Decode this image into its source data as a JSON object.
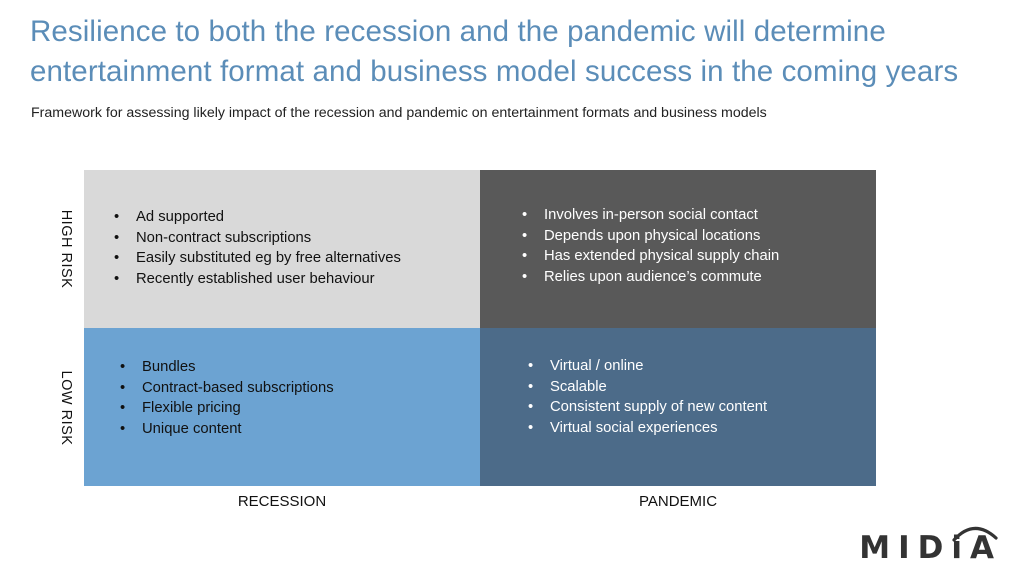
{
  "title": "Resilience to both the recession and the pandemic will determine entertainment format and business model success in the coming years",
  "subtitle": "Framework for assessing likely impact of the recession and pandemic on entertainment formats and business models",
  "rows": {
    "high": "HIGH RISK",
    "low": "LOW RISK"
  },
  "columns": {
    "recession": "RECESSION",
    "pandemic": "PANDEMIC"
  },
  "quadrants": {
    "recession_high": [
      "Ad supported",
      "Non-contract subscriptions",
      "Easily substituted eg by free alternatives",
      "Recently established user behaviour"
    ],
    "pandemic_high": [
      "Involves in-person social contact",
      "Depends upon physical locations",
      "Has extended physical supply chain",
      "Relies upon audience’s commute"
    ],
    "recession_low": [
      "Bundles",
      "Contract-based subscriptions",
      "Flexible pricing",
      "Unique content"
    ],
    "pandemic_low": [
      "Virtual / online",
      "Scalable",
      "Consistent supply of new content",
      "Virtual social experiences"
    ]
  },
  "logo": {
    "text": "MIDiA"
  },
  "colors": {
    "title": "#5b8db8",
    "recession_high": "#d9d9d9",
    "pandemic_high": "#595959",
    "recession_low": "#6ca3d2",
    "pandemic_low": "#4c6b89"
  }
}
